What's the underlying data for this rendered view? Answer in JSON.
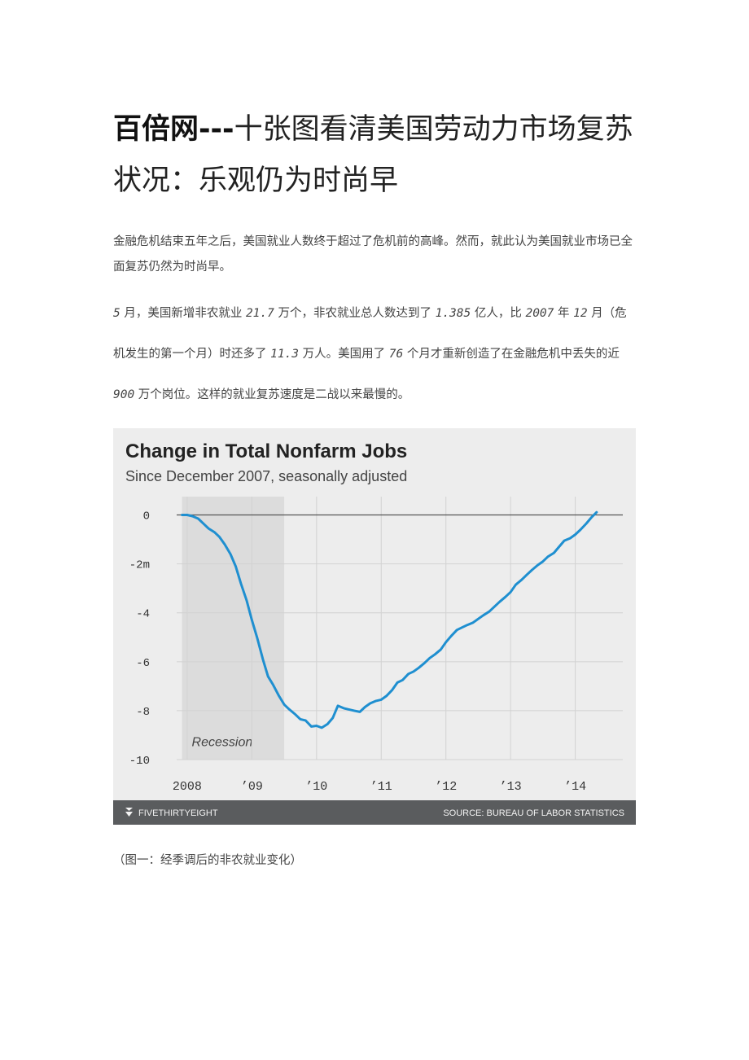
{
  "document": {
    "title_brand": "百倍网---",
    "title_rest": "十张图看清美国劳动力市场复苏状况：乐观仍为时尚早",
    "paragraph1": "金融危机结束五年之后，美国就业人数终于超过了危机前的高峰。然而，就此认为美国就业市场已全面复苏仍然为时尚早。",
    "paragraph2_parts": [
      {
        "t": "5",
        "num": true
      },
      {
        "t": " 月，美国新增非农就业 "
      },
      {
        "t": "21.7",
        "num": true
      },
      {
        "t": " 万个，非农就业总人数达到了 "
      },
      {
        "t": "1.385",
        "num": true
      },
      {
        "t": " 亿人，比 "
      },
      {
        "t": "2007",
        "num": true
      },
      {
        "t": " 年 "
      },
      {
        "t": "12",
        "num": true
      },
      {
        "t": " 月（危机发生的第一个月）时还多了 "
      },
      {
        "t": "11.3",
        "num": true
      },
      {
        "t": " 万人。美国用了 "
      },
      {
        "t": "76",
        "num": true
      },
      {
        "t": " 个月才重新创造了在金融危机中丢失的近 "
      },
      {
        "t": "900",
        "num": true
      },
      {
        "t": " 万个岗位。这样的就业复苏速度是二战以来最慢的。"
      }
    ],
    "caption": "（图一：经季调后的非农就业变化）"
  },
  "chart_data": {
    "type": "line",
    "title": "Change in Total Nonfarm Jobs",
    "subtitle": "Since December 2007, seasonally adjusted",
    "xlabel": "",
    "ylabel": "",
    "xlim": [
      2007.83,
      2014.75
    ],
    "ylim": [
      -10,
      0.75
    ],
    "y_ticks": [
      0,
      -2,
      -4,
      -6,
      -8,
      -10
    ],
    "y_tick_labels": [
      "0",
      "-2m",
      "-4",
      "-6",
      "-8",
      "-10"
    ],
    "x_ticks": [
      2008,
      2009,
      2010,
      2011,
      2012,
      2013,
      2014
    ],
    "x_tick_labels": [
      "2008",
      "’09",
      "’10",
      "’11",
      "’12",
      "’13",
      "’14"
    ],
    "shaded_region": {
      "label": "Recession",
      "x_start": 2007.92,
      "x_end": 2009.5
    },
    "series": [
      {
        "name": "Change in total nonfarm jobs (millions)",
        "color": "#1f8fd0",
        "points": [
          [
            2007.92,
            0.0
          ],
          [
            2008.0,
            0.0
          ],
          [
            2008.08,
            -0.05
          ],
          [
            2008.17,
            -0.15
          ],
          [
            2008.25,
            -0.35
          ],
          [
            2008.33,
            -0.55
          ],
          [
            2008.42,
            -0.7
          ],
          [
            2008.5,
            -0.9
          ],
          [
            2008.58,
            -1.2
          ],
          [
            2008.67,
            -1.6
          ],
          [
            2008.75,
            -2.1
          ],
          [
            2008.83,
            -2.8
          ],
          [
            2008.92,
            -3.5
          ],
          [
            2009.0,
            -4.3
          ],
          [
            2009.08,
            -5.0
          ],
          [
            2009.17,
            -5.9
          ],
          [
            2009.25,
            -6.6
          ],
          [
            2009.33,
            -6.95
          ],
          [
            2009.42,
            -7.4
          ],
          [
            2009.5,
            -7.75
          ],
          [
            2009.58,
            -7.95
          ],
          [
            2009.67,
            -8.15
          ],
          [
            2009.75,
            -8.35
          ],
          [
            2009.83,
            -8.4
          ],
          [
            2009.92,
            -8.65
          ],
          [
            2010.0,
            -8.62
          ],
          [
            2010.08,
            -8.7
          ],
          [
            2010.17,
            -8.55
          ],
          [
            2010.25,
            -8.3
          ],
          [
            2010.33,
            -7.8
          ],
          [
            2010.42,
            -7.9
          ],
          [
            2010.5,
            -7.95
          ],
          [
            2010.58,
            -8.0
          ],
          [
            2010.67,
            -8.05
          ],
          [
            2010.75,
            -7.85
          ],
          [
            2010.83,
            -7.7
          ],
          [
            2010.92,
            -7.6
          ],
          [
            2011.0,
            -7.55
          ],
          [
            2011.08,
            -7.4
          ],
          [
            2011.17,
            -7.15
          ],
          [
            2011.25,
            -6.85
          ],
          [
            2011.33,
            -6.75
          ],
          [
            2011.42,
            -6.5
          ],
          [
            2011.5,
            -6.4
          ],
          [
            2011.58,
            -6.25
          ],
          [
            2011.67,
            -6.05
          ],
          [
            2011.75,
            -5.85
          ],
          [
            2011.83,
            -5.7
          ],
          [
            2011.92,
            -5.5
          ],
          [
            2012.0,
            -5.2
          ],
          [
            2012.08,
            -4.95
          ],
          [
            2012.17,
            -4.7
          ],
          [
            2012.25,
            -4.6
          ],
          [
            2012.33,
            -4.5
          ],
          [
            2012.42,
            -4.4
          ],
          [
            2012.5,
            -4.25
          ],
          [
            2012.58,
            -4.1
          ],
          [
            2012.67,
            -3.95
          ],
          [
            2012.75,
            -3.75
          ],
          [
            2012.83,
            -3.55
          ],
          [
            2012.92,
            -3.35
          ],
          [
            2013.0,
            -3.15
          ],
          [
            2013.08,
            -2.85
          ],
          [
            2013.17,
            -2.65
          ],
          [
            2013.25,
            -2.45
          ],
          [
            2013.33,
            -2.25
          ],
          [
            2013.42,
            -2.05
          ],
          [
            2013.5,
            -1.9
          ],
          [
            2013.58,
            -1.7
          ],
          [
            2013.67,
            -1.55
          ],
          [
            2013.75,
            -1.3
          ],
          [
            2013.83,
            -1.05
          ],
          [
            2013.92,
            -0.95
          ],
          [
            2014.0,
            -0.8
          ],
          [
            2014.08,
            -0.6
          ],
          [
            2014.17,
            -0.35
          ],
          [
            2014.25,
            -0.1
          ],
          [
            2014.33,
            0.11
          ]
        ]
      }
    ],
    "footer_left": "FIVETHIRTYEIGHT",
    "footer_right": "SOURCE: BUREAU OF LABOR STATISTICS",
    "colors": {
      "background": "#ededed",
      "recession_band": "#dcdcdc",
      "gridline": "#d2d2d2",
      "zero_line": "#555555",
      "line": "#1f8fd0",
      "footer_bg": "#5a5c5e",
      "footer_text": "#f2f2f2",
      "title_text": "#222222"
    }
  }
}
